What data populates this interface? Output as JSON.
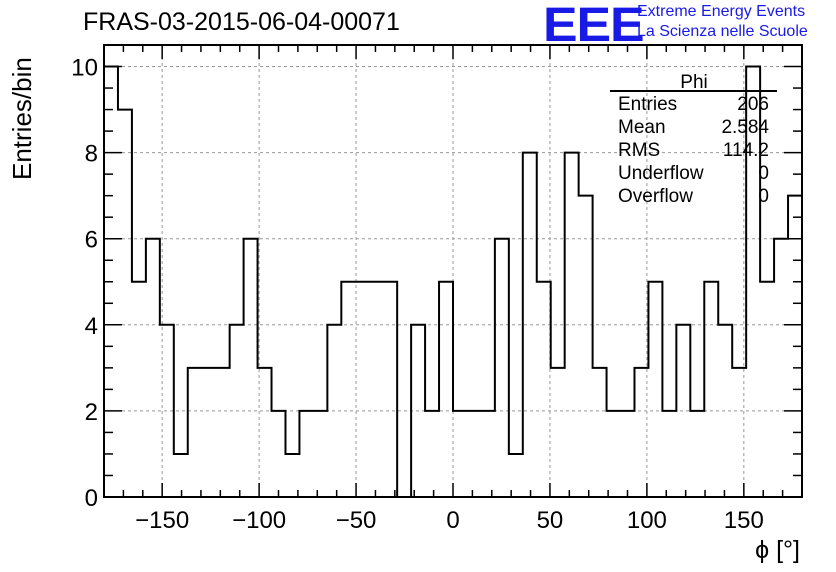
{
  "header": {
    "title": "FRAS-03-2015-06-04-00071",
    "logo_mark": "EEE",
    "logo_line1": "Extreme Energy Events",
    "logo_line2": "La Scienza nelle Scuole",
    "logo_color": "#1a1ae6"
  },
  "chart_data": {
    "type": "bar",
    "histogram": true,
    "title": "FRAS-03-2015-06-04-00071",
    "xlabel": "ϕ [°]",
    "ylabel": "Entries/bin",
    "xlim": [
      -180,
      180
    ],
    "ylim": [
      0,
      10.5
    ],
    "bin_width": 7.2,
    "x_ticks": [
      -150,
      -100,
      -50,
      0,
      50,
      100,
      150
    ],
    "x_tick_labels": [
      "−150",
      "−100",
      "−50",
      "0",
      "50",
      "100",
      "150"
    ],
    "y_ticks": [
      0,
      2,
      4,
      6,
      8,
      10
    ],
    "y_tick_labels": [
      "0",
      "2",
      "4",
      "6",
      "8",
      "10"
    ],
    "grid": true,
    "values": [
      10,
      9,
      5,
      6,
      4,
      1,
      3,
      3,
      3,
      4,
      6,
      3,
      2,
      1,
      2,
      2,
      4,
      5,
      5,
      5,
      5,
      0,
      4,
      2,
      5,
      2,
      2,
      2,
      6,
      1,
      8,
      5,
      3,
      8,
      7,
      3,
      2,
      2,
      3,
      5,
      2,
      4,
      2,
      5,
      4,
      3,
      10,
      5,
      6,
      7
    ],
    "stats_box": {
      "title": "Phi",
      "position": "top-right",
      "rows": [
        {
          "label": "Entries",
          "value": "206"
        },
        {
          "label": "Mean",
          "value": "2.584"
        },
        {
          "label": "RMS",
          "value": "114.2"
        },
        {
          "label": "Underflow",
          "value": "0"
        },
        {
          "label": "Overflow",
          "value": "0"
        }
      ]
    }
  }
}
